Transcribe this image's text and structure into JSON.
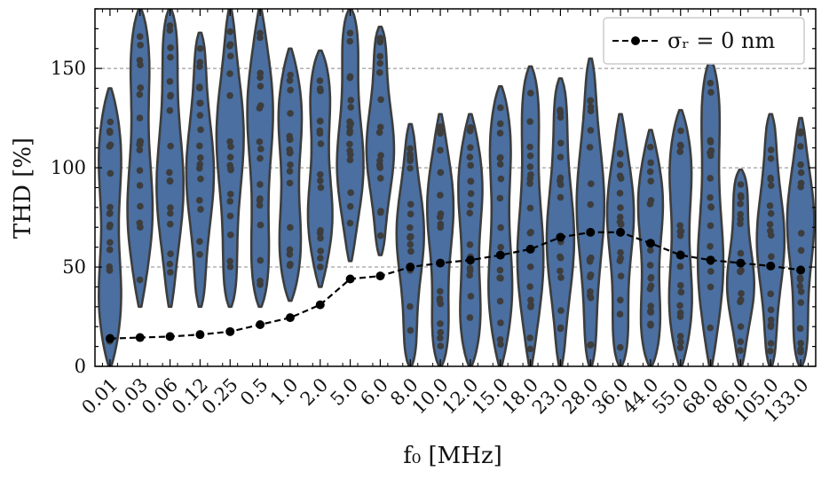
{
  "chart_data": {
    "type": "violin",
    "xlabel": "f₀ [MHz]",
    "ylabel": "THD [%]",
    "ylim": [
      0,
      180
    ],
    "yticks": [
      0,
      50,
      100,
      150
    ],
    "grid": "horizontal-dashed",
    "legend_position": "top-right",
    "violin_color": "#4a6fa0",
    "violin_edge": "#3d3d3d",
    "line_color": "#000000",
    "categories": [
      "0.01",
      "0.03",
      "0.06",
      "0.12",
      "0.25",
      "0.5",
      "1.0",
      "2.0",
      "5.0",
      "6.0",
      "8.0",
      "10.0",
      "12.0",
      "15.0",
      "18.0",
      "23.0",
      "28.0",
      "36.0",
      "44.0",
      "55.0",
      "68.0",
      "86.0",
      "105.0",
      "133.0"
    ],
    "violins": [
      {
        "min": 0,
        "max": 140
      },
      {
        "min": 30,
        "max": 180
      },
      {
        "min": 30,
        "max": 180
      },
      {
        "min": 30,
        "max": 168
      },
      {
        "min": 30,
        "max": 180
      },
      {
        "min": 30,
        "max": 180
      },
      {
        "min": 33,
        "max": 160
      },
      {
        "min": 40,
        "max": 159
      },
      {
        "min": 53,
        "max": 180
      },
      {
        "min": 56,
        "max": 171
      },
      {
        "min": 0,
        "max": 122
      },
      {
        "min": 0,
        "max": 127
      },
      {
        "min": 0,
        "max": 127
      },
      {
        "min": 0,
        "max": 141
      },
      {
        "min": 0,
        "max": 151
      },
      {
        "min": 0,
        "max": 145
      },
      {
        "min": 0,
        "max": 155
      },
      {
        "min": 0,
        "max": 127
      },
      {
        "min": 0,
        "max": 119
      },
      {
        "min": 0,
        "max": 129
      },
      {
        "min": 0,
        "max": 154
      },
      {
        "min": 0,
        "max": 99
      },
      {
        "min": 0,
        "max": 127
      },
      {
        "min": 0,
        "max": 125
      }
    ],
    "series": [
      {
        "name": "σᵣ = 0 nm",
        "values": [
          14,
          14.5,
          15,
          16,
          17.5,
          21,
          24.5,
          31,
          44,
          45.5,
          50,
          52,
          53.5,
          56,
          59,
          65,
          67.5,
          67.5,
          62,
          56,
          53.5,
          52,
          50.5,
          48.5
        ]
      }
    ]
  }
}
